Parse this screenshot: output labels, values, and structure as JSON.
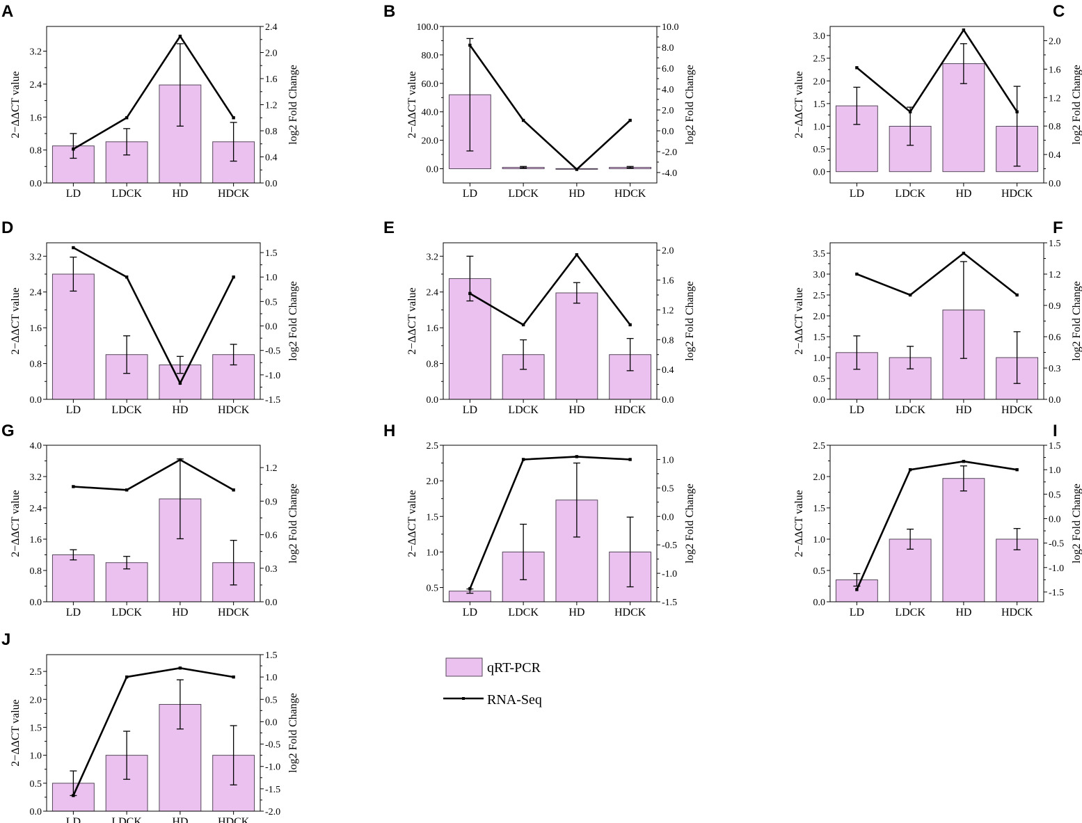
{
  "colors": {
    "bar_fill": "#ebc1ef",
    "bar_stroke": "#55475a",
    "line": "#000000",
    "axis": "#000000"
  },
  "legend": {
    "bar_label": "qRT-PCR",
    "line_label": "RNA-Seq"
  },
  "chart_data": [
    {
      "type": "bar+line",
      "panel": "A",
      "categories": [
        "LD",
        "LDCK",
        "HD",
        "HDCK"
      ],
      "ylabel": "2−ΔΔCT value",
      "y2label": "log2 Fold Change",
      "ylim": [
        0,
        3.8
      ],
      "yticks": [
        0.0,
        0.8,
        1.6,
        2.4,
        3.2
      ],
      "ytick_labels": [
        "0.0",
        "0.8",
        "1.6",
        "2.4",
        "3.2"
      ],
      "y2lim": [
        0,
        2.4
      ],
      "y2ticks": [
        0.0,
        0.4,
        0.8,
        1.2,
        1.6,
        2.0,
        2.4
      ],
      "y2tick_labels": [
        "0.0",
        "0.4",
        "0.8",
        "1.2",
        "1.6",
        "2.0",
        "2.4"
      ],
      "series": [
        {
          "name": "qRT-PCR",
          "axis": "left",
          "values": [
            0.9,
            1.0,
            2.38,
            1.0
          ],
          "errors": [
            0.3,
            0.32,
            1.0,
            0.47
          ]
        },
        {
          "name": "RNA-Seq",
          "axis": "right",
          "values": [
            0.52,
            1.0,
            2.25,
            1.0
          ]
        }
      ]
    },
    {
      "type": "bar+line",
      "panel": "B",
      "categories": [
        "LD",
        "LDCK",
        "HD",
        "HDCK"
      ],
      "ylabel": "2−ΔΔCT value",
      "y2label": "log2 Fold Change",
      "ylim": [
        -10,
        100
      ],
      "yticks": [
        0,
        20,
        40,
        60,
        80,
        100
      ],
      "ytick_labels": [
        "0.0",
        "20.0",
        "40.0",
        "60.0",
        "80.0",
        "100.0"
      ],
      "y2lim": [
        -5,
        10
      ],
      "y2ticks": [
        -4,
        -2,
        0,
        2,
        4,
        6,
        8,
        10
      ],
      "y2tick_labels": [
        "-4.0",
        "-2.0",
        "0.0",
        "2.0",
        "4.0",
        "6.0",
        "8.0",
        "10.0"
      ],
      "series": [
        {
          "name": "qRT-PCR",
          "axis": "left",
          "values": [
            52,
            1.0,
            0.1,
            1.0
          ],
          "errors": [
            39.5,
            0.6,
            0.0,
            0.6
          ]
        },
        {
          "name": "RNA-Seq",
          "axis": "right",
          "values": [
            8.2,
            1.0,
            -3.7,
            1.0
          ]
        }
      ]
    },
    {
      "type": "bar+line",
      "panel": "C",
      "categories": [
        "LD",
        "LDCK",
        "HD",
        "HDCK"
      ],
      "ylabel": "2−ΔΔCT value",
      "y2label": "log2 Fold Change",
      "ylim": [
        -0.25,
        3.2
      ],
      "yticks": [
        0,
        0.5,
        1.0,
        1.5,
        2.0,
        2.5,
        3.0
      ],
      "ytick_labels": [
        "0.0",
        "0.5",
        "1.0",
        "1.5",
        "2.0",
        "2.5",
        "3.0"
      ],
      "y2lim": [
        0,
        2.2
      ],
      "y2ticks": [
        0,
        0.4,
        0.8,
        1.2,
        1.6,
        2.0
      ],
      "y2tick_labels": [
        "0.0",
        "0.4",
        "0.8",
        "1.2",
        "1.6",
        "2.0"
      ],
      "series": [
        {
          "name": "qRT-PCR",
          "axis": "left",
          "values": [
            1.45,
            1.0,
            2.38,
            1.0
          ],
          "errors": [
            0.41,
            0.42,
            0.44,
            0.88
          ]
        },
        {
          "name": "RNA-Seq",
          "axis": "right",
          "values": [
            1.62,
            1.0,
            2.15,
            1.0
          ]
        }
      ]
    },
    {
      "type": "bar+line",
      "panel": "D",
      "categories": [
        "LD",
        "LDCK",
        "HD",
        "HDCK"
      ],
      "ylabel": "2−ΔΔCT value",
      "y2label": "log2 Fold Change",
      "ylim": [
        0,
        3.5
      ],
      "yticks": [
        0.0,
        0.8,
        1.6,
        2.4,
        3.2
      ],
      "ytick_labels": [
        "0.0",
        "0.8",
        "1.6",
        "2.4",
        "3.2"
      ],
      "y2lim": [
        -1.5,
        1.7
      ],
      "y2ticks": [
        -1.5,
        -1.0,
        -0.5,
        0.0,
        0.5,
        1.0,
        1.5
      ],
      "y2tick_labels": [
        "-1.5",
        "-1.0",
        "-0.5",
        "0.0",
        "0.5",
        "1.0",
        "1.5"
      ],
      "series": [
        {
          "name": "qRT-PCR",
          "axis": "left",
          "values": [
            2.8,
            1.0,
            0.77,
            1.0
          ],
          "errors": [
            0.38,
            0.42,
            0.19,
            0.23
          ]
        },
        {
          "name": "RNA-Seq",
          "axis": "right",
          "values": [
            1.6,
            1.0,
            -1.17,
            1.0
          ]
        }
      ]
    },
    {
      "type": "bar+line",
      "panel": "E",
      "categories": [
        "LD",
        "LDCK",
        "HD",
        "HDCK"
      ],
      "ylabel": "2−ΔΔCT value",
      "y2label": "log2 Fold Change",
      "ylim": [
        0,
        3.5
      ],
      "yticks": [
        0.0,
        0.8,
        1.6,
        2.4,
        3.2
      ],
      "ytick_labels": [
        "0.0",
        "0.8",
        "1.6",
        "2.4",
        "3.2"
      ],
      "y2lim": [
        0,
        2.1
      ],
      "y2ticks": [
        0,
        0.4,
        0.8,
        1.2,
        1.6,
        2.0
      ],
      "y2tick_labels": [
        "0.0",
        "0.4",
        "0.8",
        "1.2",
        "1.6",
        "2.0"
      ],
      "series": [
        {
          "name": "qRT-PCR",
          "axis": "left",
          "values": [
            2.7,
            1.0,
            2.38,
            1.0
          ],
          "errors": [
            0.5,
            0.33,
            0.23,
            0.36
          ]
        },
        {
          "name": "RNA-Seq",
          "axis": "right",
          "values": [
            1.42,
            1.0,
            1.94,
            1.0
          ]
        }
      ]
    },
    {
      "type": "bar+line",
      "panel": "F",
      "categories": [
        "LD",
        "LDCK",
        "HD",
        "HDCK"
      ],
      "ylabel": "2−ΔΔCT value",
      "y2label": "log2 Fold Change",
      "ylim": [
        0,
        3.75
      ],
      "yticks": [
        0,
        0.5,
        1.0,
        1.5,
        2.0,
        2.5,
        3.0,
        3.5
      ],
      "ytick_labels": [
        "0.0",
        "0.5",
        "1.0",
        "1.5",
        "2.0",
        "2.5",
        "3.0",
        "3.5"
      ],
      "y2lim": [
        0,
        1.5
      ],
      "y2ticks": [
        0,
        0.3,
        0.6,
        0.9,
        1.2,
        1.5
      ],
      "y2tick_labels": [
        "0.0",
        "0.3",
        "0.6",
        "0.9",
        "1.2",
        "1.5"
      ],
      "series": [
        {
          "name": "qRT-PCR",
          "axis": "left",
          "values": [
            1.12,
            1.0,
            2.14,
            1.0
          ],
          "errors": [
            0.4,
            0.27,
            1.16,
            0.62
          ]
        },
        {
          "name": "RNA-Seq",
          "axis": "right",
          "values": [
            1.2,
            1.0,
            1.4,
            1.0
          ]
        }
      ]
    },
    {
      "type": "bar+line",
      "panel": "G",
      "categories": [
        "LD",
        "LDCK",
        "HD",
        "HDCK"
      ],
      "ylabel": "2−ΔΔCT value",
      "y2label": "log2 Fold Change",
      "ylim": [
        0,
        4.0
      ],
      "yticks": [
        0.0,
        0.8,
        1.6,
        2.4,
        3.2,
        4.0
      ],
      "ytick_labels": [
        "0.0",
        "0.8",
        "1.6",
        "2.4",
        "3.2",
        "4.0"
      ],
      "y2lim": [
        0,
        1.4
      ],
      "y2ticks": [
        0,
        0.3,
        0.6,
        0.9,
        1.2
      ],
      "y2tick_labels": [
        "0.0",
        "0.3",
        "0.6",
        "0.9",
        "1.2"
      ],
      "series": [
        {
          "name": "qRT-PCR",
          "axis": "left",
          "values": [
            1.2,
            1.0,
            2.63,
            1.0
          ],
          "errors": [
            0.13,
            0.16,
            1.02,
            0.57
          ]
        },
        {
          "name": "RNA-Seq",
          "axis": "right",
          "values": [
            1.03,
            1.0,
            1.27,
            1.0
          ]
        }
      ]
    },
    {
      "type": "bar+line",
      "panel": "H",
      "categories": [
        "LD",
        "LDCK",
        "HD",
        "HDCK"
      ],
      "ylabel": "2−ΔΔCT value",
      "y2label": "log2 Fold Change",
      "ylim": [
        0.3,
        2.5
      ],
      "yticks": [
        0.5,
        1.0,
        1.5,
        2.0,
        2.5
      ],
      "ytick_labels": [
        "0.5",
        "1.0",
        "1.5",
        "2.0",
        "2.5"
      ],
      "y2lim": [
        -1.5,
        1.25
      ],
      "y2ticks": [
        -1.5,
        -1.0,
        -0.5,
        0.0,
        0.5,
        1.0
      ],
      "y2tick_labels": [
        "-1.5",
        "-1.0",
        "-0.5",
        "0.0",
        "0.5",
        "1.0"
      ],
      "series": [
        {
          "name": "qRT-PCR",
          "axis": "left",
          "values": [
            0.45,
            1.0,
            1.73,
            1.0
          ],
          "errors": [
            0.03,
            0.39,
            0.52,
            0.49
          ]
        },
        {
          "name": "RNA-Seq",
          "axis": "right",
          "values": [
            -1.27,
            1.0,
            1.05,
            1.0
          ]
        }
      ]
    },
    {
      "type": "bar+line",
      "panel": "I",
      "categories": [
        "LD",
        "LDCK",
        "HD",
        "HDCK"
      ],
      "ylabel": "2−ΔΔCT value",
      "y2label": "log2 Fold Change",
      "ylim": [
        0,
        2.5
      ],
      "yticks": [
        0,
        0.5,
        1.0,
        1.5,
        2.0,
        2.5
      ],
      "ytick_labels": [
        "0.0",
        "0.5",
        "1.0",
        "1.5",
        "2.0",
        "2.5"
      ],
      "y2lim": [
        -1.7,
        1.5
      ],
      "y2ticks": [
        -1.5,
        -1.0,
        -0.5,
        0.0,
        0.5,
        1.0,
        1.5
      ],
      "y2tick_labels": [
        "-1.5",
        "-1.0",
        "-0.5",
        "0.0",
        "0.5",
        "1.0",
        "1.5"
      ],
      "series": [
        {
          "name": "qRT-PCR",
          "axis": "left",
          "values": [
            0.35,
            1.0,
            1.97,
            1.0
          ],
          "errors": [
            0.1,
            0.16,
            0.2,
            0.17
          ]
        },
        {
          "name": "RNA-Seq",
          "axis": "right",
          "values": [
            -1.45,
            1.0,
            1.17,
            1.0
          ]
        }
      ]
    },
    {
      "type": "bar+line",
      "panel": "J",
      "categories": [
        "LD",
        "LDCK",
        "HD",
        "HDCK"
      ],
      "ylabel": "2−ΔΔCT value",
      "y2label": "log2 Fold Change",
      "ylim": [
        0,
        2.8
      ],
      "yticks": [
        0,
        0.5,
        1.0,
        1.5,
        2.0,
        2.5
      ],
      "ytick_labels": [
        "0.0",
        "0.5",
        "1.0",
        "1.5",
        "2.0",
        "2.5"
      ],
      "y2lim": [
        -2.0,
        1.5
      ],
      "y2ticks": [
        -2.0,
        -1.5,
        -1.0,
        -0.5,
        0.0,
        0.5,
        1.0,
        1.5
      ],
      "y2tick_labels": [
        "-2.0",
        "-1.5",
        "-1.0",
        "-0.5",
        "0.0",
        "0.5",
        "1.0",
        "1.5"
      ],
      "series": [
        {
          "name": "qRT-PCR",
          "axis": "left",
          "values": [
            0.5,
            1.0,
            1.91,
            1.0
          ],
          "errors": [
            0.22,
            0.43,
            0.44,
            0.53
          ]
        },
        {
          "name": "RNA-Seq",
          "axis": "right",
          "values": [
            -1.65,
            1.0,
            1.2,
            1.0
          ]
        }
      ]
    }
  ]
}
